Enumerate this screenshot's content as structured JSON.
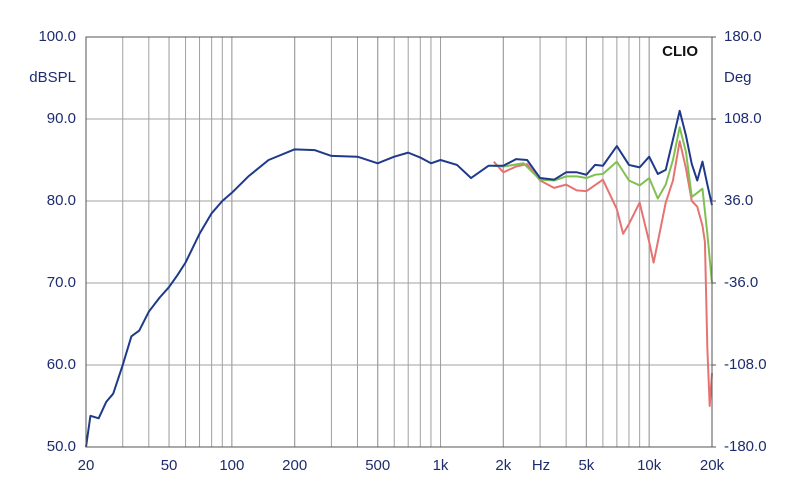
{
  "chart_data": {
    "type": "line",
    "annotation": "CLIO",
    "y_label": "dBSPL",
    "y2_label": "Deg",
    "x_label": "Hz",
    "xscale": "log",
    "grid": true,
    "xlim": [
      20,
      20000
    ],
    "xticks": [
      20,
      50,
      100,
      200,
      500,
      {
        "value": 1000,
        "label": "1k"
      },
      {
        "value": 2000,
        "label": "2k"
      },
      {
        "value": 5000,
        "label": "5k"
      },
      {
        "value": 10000,
        "label": "10k"
      },
      {
        "value": 20000,
        "label": "20k"
      }
    ],
    "ylim": [
      50,
      100
    ],
    "yticks": [
      {
        "value": 50,
        "label": "50.0"
      },
      {
        "value": 60,
        "label": "60.0"
      },
      {
        "value": 70,
        "label": "70.0"
      },
      {
        "value": 80,
        "label": "80.0"
      },
      {
        "value": 90,
        "label": "90.0"
      },
      {
        "value": 100,
        "label": "100.0"
      }
    ],
    "y2lim": [
      -180,
      180
    ],
    "y2ticks": [
      {
        "value": -180,
        "label": "-180.0"
      },
      {
        "value": -108,
        "label": "-108.0"
      },
      {
        "value": -36,
        "label": "-36.0"
      },
      {
        "value": 36,
        "label": "36.0"
      },
      {
        "value": 108,
        "label": "108.0"
      },
      {
        "value": 180,
        "label": "180.0"
      }
    ],
    "series": [
      {
        "color": "#1f3a8a",
        "x": [
          20,
          21,
          23,
          25,
          27,
          30,
          33,
          36,
          40,
          45,
          50,
          55,
          60,
          70,
          80,
          90,
          100,
          120,
          150,
          200,
          250,
          300,
          400,
          500,
          600,
          700,
          800,
          900,
          1000,
          1200,
          1400,
          1700,
          2000,
          2300,
          2600,
          3000,
          3500,
          4000,
          4500,
          5000,
          5500,
          6000,
          7000,
          8000,
          9000,
          10000,
          11000,
          12000,
          13000,
          14000,
          15000,
          16000,
          17000,
          18000,
          19000,
          20000
        ],
        "values": [
          50.0,
          53.8,
          53.5,
          55.5,
          56.5,
          60.0,
          63.5,
          64.2,
          66.5,
          68.2,
          69.5,
          71.0,
          72.5,
          76.0,
          78.5,
          80.0,
          81.0,
          83.0,
          85.0,
          86.3,
          86.2,
          85.5,
          85.4,
          84.6,
          85.4,
          85.9,
          85.3,
          84.6,
          85.0,
          84.4,
          82.8,
          84.3,
          84.3,
          85.1,
          85.0,
          82.8,
          82.6,
          83.5,
          83.5,
          83.2,
          84.4,
          84.3,
          86.7,
          84.4,
          84.1,
          85.4,
          83.3,
          83.8,
          87.5,
          91.0,
          88.0,
          84.5,
          82.5,
          84.8,
          82.0,
          79.5
        ]
      },
      {
        "color": "#80c050",
        "x": [
          1800,
          2000,
          2500,
          3000,
          3500,
          4000,
          4500,
          5000,
          5500,
          6000,
          7000,
          8000,
          9000,
          10000,
          11000,
          12000,
          13000,
          14000,
          15000,
          16000,
          17000,
          18000,
          19000,
          20000
        ],
        "values": [
          84.3,
          84.2,
          84.6,
          82.6,
          82.5,
          83.0,
          83.0,
          82.8,
          83.2,
          83.3,
          84.8,
          82.5,
          81.9,
          82.8,
          80.3,
          82.0,
          85.0,
          89.0,
          86.0,
          80.5,
          81.0,
          81.5,
          76.0,
          70.0
        ]
      },
      {
        "color": "#e57373",
        "x": [
          1800,
          2000,
          2300,
          2600,
          3000,
          3500,
          4000,
          4500,
          5000,
          6000,
          7000,
          7500,
          8000,
          9000,
          10000,
          10500,
          11000,
          12000,
          13000,
          14000,
          15000,
          16000,
          17000,
          18000,
          18500,
          19000,
          19500,
          20000
        ],
        "values": [
          84.8,
          83.5,
          84.2,
          84.5,
          82.5,
          81.6,
          82.0,
          81.3,
          81.2,
          82.6,
          79.0,
          76.0,
          77.2,
          79.8,
          75.0,
          72.5,
          75.0,
          79.8,
          82.5,
          87.3,
          84.0,
          80.0,
          79.3,
          77.0,
          75.0,
          62.0,
          55.0,
          59.0
        ]
      }
    ]
  }
}
